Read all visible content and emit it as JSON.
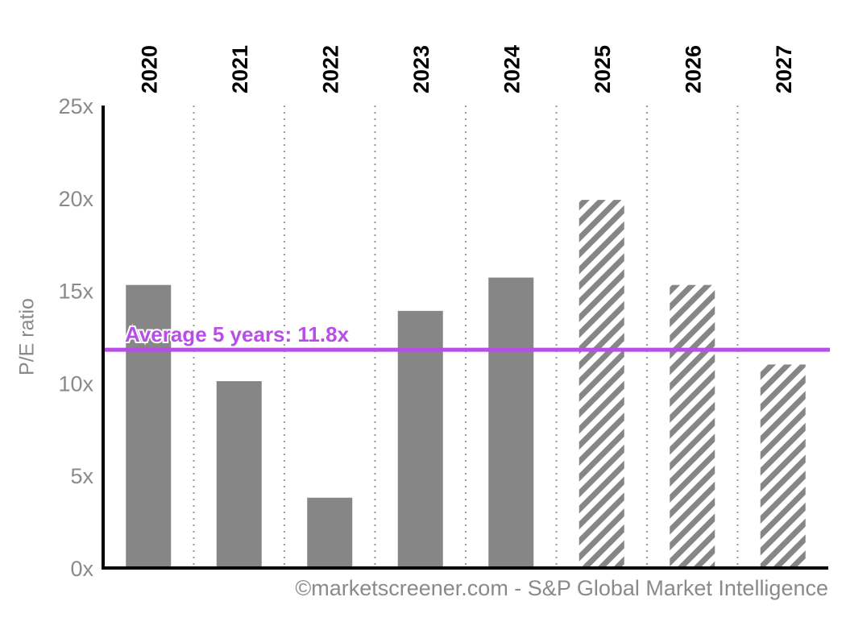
{
  "chart_data": {
    "type": "bar",
    "categories": [
      "2020",
      "2021",
      "2022",
      "2023",
      "2024",
      "2025",
      "2026",
      "2027"
    ],
    "values": [
      15.3,
      10.1,
      3.8,
      13.9,
      15.7,
      19.9,
      15.3,
      11.0
    ],
    "estimate": [
      false,
      false,
      false,
      false,
      false,
      true,
      true,
      true
    ],
    "ylabel": "P/E ratio",
    "ylim": [
      0,
      25
    ],
    "yticks": [
      0,
      5,
      10,
      15,
      20,
      25
    ],
    "ytick_labels": [
      "0x",
      "5x",
      "10x",
      "15x",
      "20x",
      "25x"
    ],
    "average": {
      "value": 11.8,
      "label": "Average 5 years: 11.8x"
    },
    "grid": "vertical-dotted",
    "colors": {
      "bar": "#868686",
      "average": "#b84ee6",
      "axis": "#000000",
      "tick_label": "#8a8a8a"
    }
  },
  "source_credit": "©marketscreener.com - S&P Global Market Intelligence"
}
